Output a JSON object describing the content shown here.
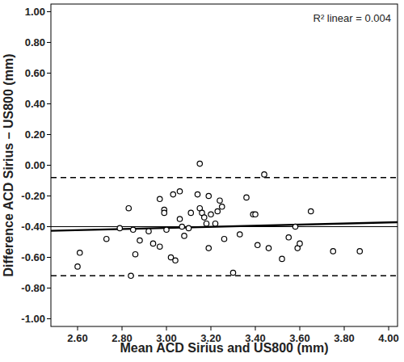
{
  "chart_data": {
    "type": "scatter",
    "x_label": "Mean ACD Sirius and US800 (mm)",
    "y_label": "Difference ACD Sirius – US800 (mm)",
    "annotation": "R² linear = 0.004",
    "x": [
      2.6,
      2.61,
      2.73,
      2.79,
      2.83,
      2.84,
      2.85,
      2.86,
      2.88,
      2.92,
      2.94,
      2.97,
      2.97,
      2.99,
      2.99,
      3.0,
      3.02,
      3.03,
      3.04,
      3.06,
      3.06,
      3.07,
      3.08,
      3.1,
      3.11,
      3.14,
      3.15,
      3.15,
      3.16,
      3.17,
      3.18,
      3.19,
      3.19,
      3.2,
      3.22,
      3.23,
      3.24,
      3.25,
      3.26,
      3.3,
      3.33,
      3.36,
      3.39,
      3.4,
      3.41,
      3.44,
      3.46,
      3.52,
      3.55,
      3.58,
      3.59,
      3.6,
      3.65,
      3.75,
      3.87
    ],
    "values": [
      -0.66,
      -0.57,
      -0.48,
      -0.41,
      -0.28,
      -0.72,
      -0.42,
      -0.58,
      -0.49,
      -0.43,
      -0.51,
      -0.53,
      -0.22,
      -0.29,
      -0.31,
      -0.42,
      -0.6,
      -0.19,
      -0.62,
      -0.17,
      -0.35,
      -0.4,
      -0.46,
      -0.41,
      -0.31,
      -0.19,
      -0.28,
      0.01,
      -0.31,
      -0.34,
      -0.38,
      -0.2,
      -0.54,
      -0.32,
      -0.38,
      -0.3,
      -0.23,
      -0.27,
      -0.48,
      -0.7,
      -0.45,
      -0.21,
      -0.32,
      -0.32,
      -0.52,
      -0.06,
      -0.54,
      -0.61,
      -0.47,
      -0.4,
      -0.54,
      -0.51,
      -0.3,
      -0.56,
      -0.56
    ],
    "marker": "open-circle",
    "color": "#000000",
    "mean_difference": -0.4,
    "limits_of_agreement": [
      -0.08,
      -0.72
    ],
    "fit_line": {
      "x": [
        2.48,
        4.04
      ],
      "y": [
        -0.427,
        -0.371
      ]
    },
    "xlim": [
      2.48,
      4.04
    ],
    "ylim": [
      -1.05,
      1.05
    ],
    "xticks": [
      {
        "value": 2.6,
        "label": "2.60"
      },
      {
        "value": 2.8,
        "label": "2.80"
      },
      {
        "value": 3.0,
        "label": "3.00"
      },
      {
        "value": 3.2,
        "label": "3.20"
      },
      {
        "value": 3.4,
        "label": "3.40"
      },
      {
        "value": 3.6,
        "label": "3.60"
      },
      {
        "value": 3.8,
        "label": "3.80"
      },
      {
        "value": 4.0,
        "label": "4.00"
      }
    ],
    "yticks": [
      {
        "value": 1.0,
        "label": "1.00"
      },
      {
        "value": 0.8,
        "label": "0.80"
      },
      {
        "value": 0.6,
        "label": "0.60"
      },
      {
        "value": 0.4,
        "label": "0.40"
      },
      {
        "value": 0.2,
        "label": "0.20"
      },
      {
        "value": 0.0,
        "label": "0.00"
      },
      {
        "value": -0.2,
        "label": "-0.20"
      },
      {
        "value": -0.4,
        "label": "-0.40"
      },
      {
        "value": -0.6,
        "label": "-0.60"
      },
      {
        "value": -0.8,
        "label": "-0.80"
      },
      {
        "value": -1.0,
        "label": "-1.00"
      }
    ],
    "grid": false
  }
}
